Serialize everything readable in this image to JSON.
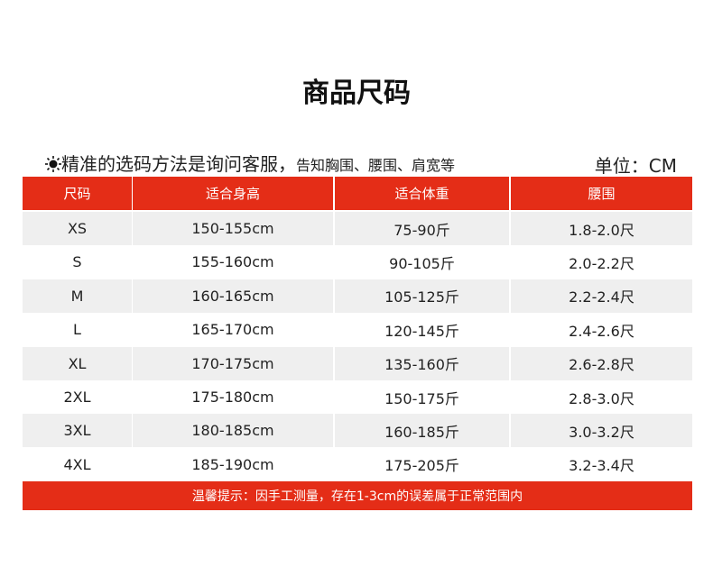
{
  "title": "商品尺码",
  "note": {
    "main": "精准的选码方法是询问客服，",
    "detail": "告知胸围、腰围、肩宽等"
  },
  "unit": "单位：CM",
  "table": {
    "headers": [
      "尺码",
      "适合身高",
      "适合体重",
      "腰围"
    ],
    "rows": [
      [
        "XS",
        "150-155cm",
        "75-90斤",
        "1.8-2.0尺"
      ],
      [
        "S",
        "155-160cm",
        "90-105斤",
        "2.0-2.2尺"
      ],
      [
        "M",
        "160-165cm",
        "105-125斤",
        "2.2-2.4尺"
      ],
      [
        "L",
        "165-170cm",
        "120-145斤",
        "2.4-2.6尺"
      ],
      [
        "XL",
        "170-175cm",
        "135-160斤",
        "2.6-2.8尺"
      ],
      [
        "2XL",
        "175-180cm",
        "150-175斤",
        "2.8-3.0尺"
      ],
      [
        "3XL",
        "180-185cm",
        "160-185斤",
        "3.0-3.2尺"
      ],
      [
        "4XL",
        "185-190cm",
        "175-205斤",
        "3.2-3.4尺"
      ]
    ]
  },
  "footer": "温馨提示：因手工测量，存在1-3cm的误差属于正常范围内"
}
